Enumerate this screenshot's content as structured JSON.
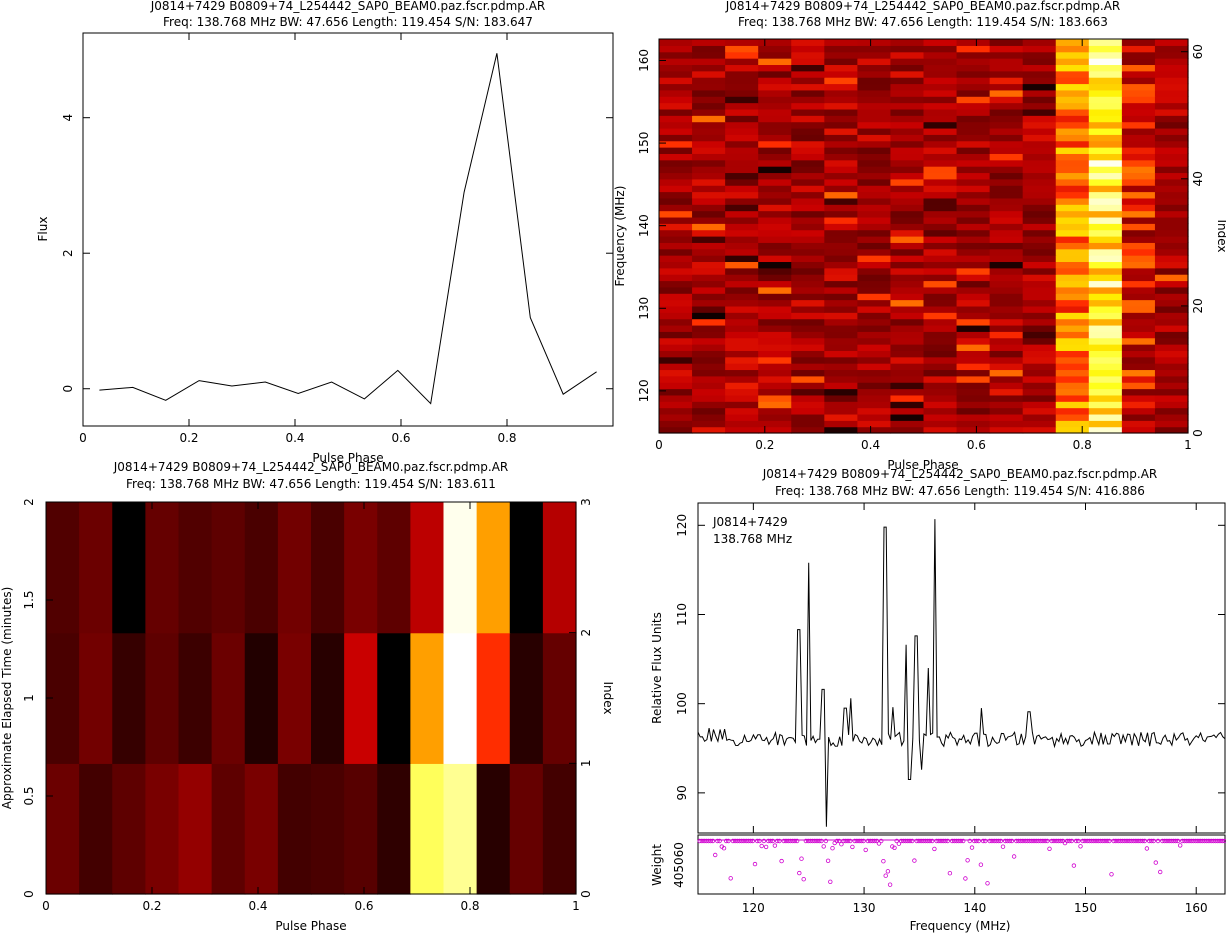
{
  "chart_data": [
    {
      "type": "line",
      "title": "J0814+7429 B0809+74_L254442_SAP0_BEAM0.paz.fscr.pdmp.AR",
      "subtitle": "Freq: 138.768 MHz BW: 47.656 Length: 119.454 S/N: 183.647",
      "xlabel": "Pulse Phase",
      "ylabel": "Flux",
      "xlim": [
        0,
        1
      ],
      "ylim": [
        -0.55,
        5.25
      ],
      "xticks": [
        "0",
        "0.2",
        "0.4",
        "0.6",
        "0.8"
      ],
      "yticks": [
        "0",
        "2",
        "4"
      ],
      "x": [
        0.031,
        0.094,
        0.156,
        0.219,
        0.281,
        0.344,
        0.406,
        0.469,
        0.531,
        0.594,
        0.656,
        0.719,
        0.781,
        0.844,
        0.906,
        0.969
      ],
      "values": [
        -0.02,
        0.02,
        -0.17,
        0.12,
        0.04,
        0.1,
        -0.07,
        0.1,
        -0.15,
        0.27,
        -0.22,
        2.9,
        4.95,
        1.05,
        -0.08,
        0.25
      ]
    },
    {
      "type": "heatmap",
      "title": "J0814+7429 B0809+74_L254442_SAP0_BEAM0.paz.fscr.pdmp.AR",
      "subtitle": "Freq: 138.768 MHz BW: 47.656 Length: 119.454 S/N: 183.663",
      "xlabel": "Pulse Phase",
      "ylabel": "Frequency (MHz)",
      "ylabel_right": "Index",
      "xlim": [
        0,
        1
      ],
      "ylim": [
        114.9,
        162.6
      ],
      "ylim_right": [
        0,
        62
      ],
      "xticks": [
        "0",
        "0.2",
        "0.4",
        "0.6",
        "0.8",
        "1"
      ],
      "yticks": [
        "120",
        "130",
        "140",
        "150",
        "160"
      ],
      "yticks_right": [
        "0",
        "20",
        "40",
        "60"
      ],
      "phase_bins": 16,
      "channels": 62,
      "hot_bins": [
        12,
        13
      ],
      "colormap": "heat"
    },
    {
      "type": "heatmap",
      "title": "J0814+7429 B0809+74_L254442_SAP0_BEAM0.paz.fscr.pdmp.AR",
      "subtitle": "Freq: 138.768 MHz BW: 47.656 Length: 119.454 S/N: 183.611",
      "xlabel": "Pulse Phase",
      "ylabel": "Approximate Elapsed Time (minutes)",
      "ylabel_right": "Index",
      "xlim": [
        0,
        1
      ],
      "ylim": [
        0,
        2
      ],
      "ylim_right": [
        0,
        3
      ],
      "xticks": [
        "0",
        "0.2",
        "0.4",
        "0.6",
        "0.8",
        "1"
      ],
      "yticks": [
        "0",
        "0.5",
        "1",
        "1.5",
        "2"
      ],
      "yticks_right": [
        "0",
        "1",
        "2",
        "3"
      ],
      "values": [
        [
          0.16,
          0.1,
          0.14,
          0.18,
          0.22,
          0.14,
          0.18,
          0.1,
          0.11,
          0.13,
          0.07,
          0.82,
          0.88,
          0.06,
          0.15,
          0.1
        ],
        [
          0.11,
          0.17,
          0.08,
          0.14,
          0.09,
          0.16,
          0.05,
          0.18,
          0.06,
          0.3,
          0.0,
          0.58,
          1.0,
          0.38,
          0.06,
          0.15
        ],
        [
          0.12,
          0.16,
          0.0,
          0.15,
          0.12,
          0.14,
          0.11,
          0.17,
          0.11,
          0.18,
          0.14,
          0.28,
          0.98,
          0.58,
          0.0,
          0.27
        ]
      ],
      "colormap": "heat"
    },
    {
      "type": "line",
      "title": "J0814+7429 B0809+74_L254442_SAP0_BEAM0.paz.fscr.pdmp.AR",
      "subtitle": "Freq: 138.768 MHz BW: 47.656 Length: 119.454 S/N: 416.886",
      "annotation": [
        "J0814+7429",
        "138.768 MHz"
      ],
      "xlabel": "Frequency (MHz)",
      "ylabel": "Relative Flux Units",
      "xlim": [
        115,
        162.6
      ],
      "ylim": [
        85.5,
        122.5
      ],
      "xticks": [
        "120",
        "130",
        "140",
        "150",
        "160"
      ],
      "yticks": [
        "90",
        "100",
        "110",
        "120"
      ],
      "baseline": 96,
      "spikes": [
        {
          "x": 124.1,
          "y": 108.3
        },
        {
          "x": 125.0,
          "y": 115.8
        },
        {
          "x": 126.3,
          "y": 101.6
        },
        {
          "x": 126.6,
          "y": 86.2
        },
        {
          "x": 128.3,
          "y": 99.5
        },
        {
          "x": 128.8,
          "y": 100.6
        },
        {
          "x": 131.9,
          "y": 119.8
        },
        {
          "x": 132.6,
          "y": 99.6
        },
        {
          "x": 133.8,
          "y": 106.6
        },
        {
          "x": 134.1,
          "y": 91.5
        },
        {
          "x": 134.7,
          "y": 107.6
        },
        {
          "x": 135.2,
          "y": 92.6
        },
        {
          "x": 135.8,
          "y": 104.0
        },
        {
          "x": 136.4,
          "y": 120.7
        },
        {
          "x": 140.6,
          "y": 99.5
        },
        {
          "x": 144.9,
          "y": 99.1
        }
      ],
      "weight_panel": {
        "ylabel": "Weight",
        "ytick": "405060",
        "marker_color": "#d000d0"
      }
    }
  ]
}
